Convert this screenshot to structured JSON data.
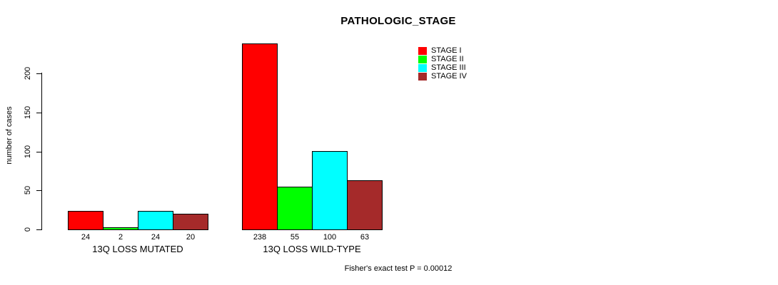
{
  "chart_data": {
    "type": "bar",
    "title": "PATHOLOGIC_STAGE",
    "ylabel": "number of cases",
    "footnote": "Fisher's exact test P = 0.00012",
    "ylim": [
      0,
      200
    ],
    "yticks": [
      0,
      50,
      100,
      150,
      200
    ],
    "categories": [
      "13Q LOSS MUTATED",
      "13Q LOSS WILD-TYPE"
    ],
    "series": [
      {
        "name": "STAGE I",
        "color": "#ff0000",
        "values": [
          24,
          238
        ]
      },
      {
        "name": "STAGE II",
        "color": "#00ff00",
        "values": [
          2,
          55
        ]
      },
      {
        "name": "STAGE III",
        "color": "#00ffff",
        "values": [
          24,
          100
        ]
      },
      {
        "name": "STAGE IV",
        "color": "#a52a2a",
        "values": [
          20,
          63
        ]
      }
    ],
    "bar_value_labels": true,
    "legend_position": "top-right",
    "grid": false,
    "background": "#ffffff",
    "axis_color": "#000000"
  }
}
